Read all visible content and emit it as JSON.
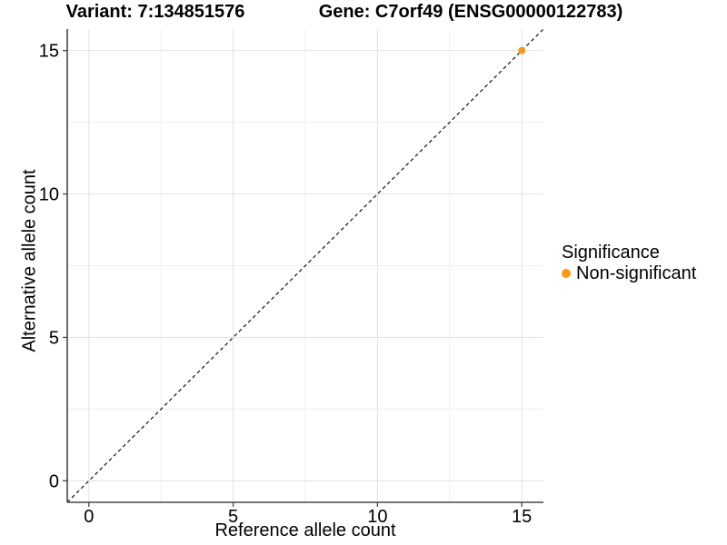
{
  "chart_data": {
    "type": "scatter",
    "title_left": "Variant: 7:134851576",
    "title_right": "Gene: C7orf49 (ENSG00000122783)",
    "xlabel": "Reference allele count",
    "ylabel": "Alternative allele count",
    "xlim": [
      -0.75,
      15.75
    ],
    "ylim": [
      -0.75,
      15.75
    ],
    "x_ticks": [
      0,
      5,
      10,
      15
    ],
    "y_ticks": [
      0,
      5,
      10,
      15
    ],
    "x_minor_ticks": [
      2.5,
      7.5,
      12.5
    ],
    "y_minor_ticks": [
      2.5,
      7.5,
      12.5
    ],
    "grid": "major+minor",
    "legend_position": "right",
    "identity_line": {
      "style": "dashed",
      "color": "#111111",
      "from": [
        -0.75,
        -0.75
      ],
      "to": [
        15.75,
        15.75
      ]
    },
    "series": [
      {
        "name": "Non-significant",
        "color": "#F8981D",
        "points": [
          {
            "x": 15,
            "y": 15
          }
        ]
      }
    ]
  },
  "legend": {
    "title": "Significance",
    "items": [
      {
        "label": "Non-significant",
        "color": "#F8981D",
        "marker": "dot-icon"
      }
    ]
  },
  "colors": {
    "background": "#FFFFFF",
    "grid_major": "#E2E2E2",
    "grid_minor": "#EFEFEF",
    "axis": "#464646",
    "tick": "#464646",
    "text": "#000000",
    "point": "#F8981D"
  }
}
